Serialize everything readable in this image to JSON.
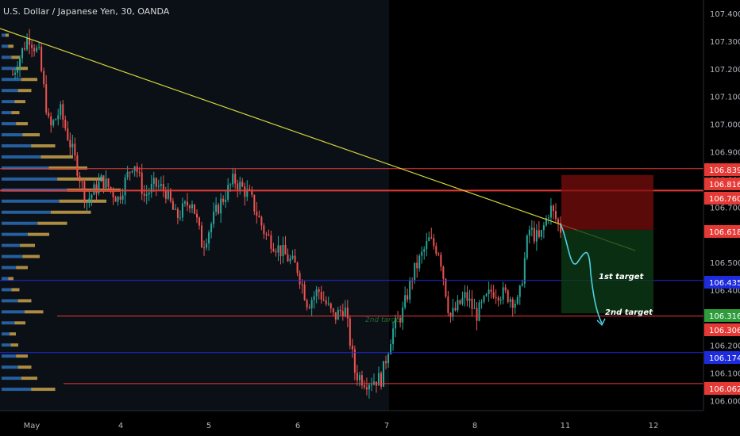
{
  "header": {
    "symbol_title": "U.S. Dollar / Japanese Yen, 30, OANDA"
  },
  "colors": {
    "background": "#000000",
    "session_shade": "#0b1016",
    "up_candle": "#26a69a",
    "down_candle": "#ef5350",
    "trendline": "#d4d43c",
    "red_level": "#e53935",
    "blue_level": "#1e2bdc",
    "projection": "#4dd0e1",
    "volume_blue": "#2a6db5",
    "volume_orange": "#c9a24a",
    "axis_text": "#b2b5be"
  },
  "chart_data": {
    "type": "candlestick",
    "title": "U.S. Dollar / Japanese Yen, 30, OANDA",
    "ylim": [
      105.97,
      107.42
    ],
    "x_day_ticks": [
      "May",
      "4",
      "5",
      "6",
      "7",
      "8",
      "11",
      "12"
    ],
    "y_ticks": [
      106.0,
      106.1,
      106.2,
      106.3,
      106.4,
      106.5,
      106.6,
      106.7,
      106.8,
      106.9,
      107.0,
      107.1,
      107.2,
      107.3,
      107.4
    ],
    "y_tick_labels": [
      "106.000",
      "106.100",
      "106.200",
      "106.300",
      "106.400",
      "106.500",
      "106.600",
      "106.700",
      "106.800",
      "106.900",
      "107.000",
      "107.100",
      "107.200",
      "107.300",
      "107.400"
    ],
    "price_path": [
      [
        0,
        107.18
      ],
      [
        3,
        107.32
      ],
      [
        5,
        107.25
      ],
      [
        7,
        106.98
      ],
      [
        9,
        107.05
      ],
      [
        12,
        106.86
      ],
      [
        14,
        106.72
      ],
      [
        17,
        106.8
      ],
      [
        20,
        106.73
      ],
      [
        23,
        106.87
      ],
      [
        25,
        106.74
      ],
      [
        27,
        106.78
      ],
      [
        29,
        106.76
      ],
      [
        31,
        106.66
      ],
      [
        34,
        106.73
      ],
      [
        36,
        106.56
      ],
      [
        39,
        106.7
      ],
      [
        42,
        106.8
      ],
      [
        45,
        106.74
      ],
      [
        48,
        106.6
      ],
      [
        51,
        106.54
      ],
      [
        54,
        106.48
      ],
      [
        56,
        106.35
      ],
      [
        58,
        106.4
      ],
      [
        61,
        106.3
      ],
      [
        63,
        106.34
      ],
      [
        65,
        106.1
      ],
      [
        67,
        106.07
      ],
      [
        70,
        106.08
      ],
      [
        72,
        106.25
      ],
      [
        74,
        106.32
      ],
      [
        76,
        106.46
      ],
      [
        79,
        106.58
      ],
      [
        81,
        106.54
      ],
      [
        83,
        106.3
      ],
      [
        86,
        106.38
      ],
      [
        88,
        106.31
      ],
      [
        91,
        106.4
      ],
      [
        94,
        106.38
      ],
      [
        96,
        106.35
      ],
      [
        98,
        106.62
      ],
      [
        100,
        106.58
      ],
      [
        102,
        106.7
      ],
      [
        104,
        106.62
      ]
    ],
    "volume_profile": [
      [
        106.04,
        0.45
      ],
      [
        106.08,
        0.3
      ],
      [
        106.12,
        0.25
      ],
      [
        106.16,
        0.22
      ],
      [
        106.2,
        0.14
      ],
      [
        106.24,
        0.12
      ],
      [
        106.28,
        0.2
      ],
      [
        106.32,
        0.35
      ],
      [
        106.36,
        0.25
      ],
      [
        106.4,
        0.15
      ],
      [
        106.44,
        0.1
      ],
      [
        106.48,
        0.22
      ],
      [
        106.52,
        0.32
      ],
      [
        106.56,
        0.28
      ],
      [
        106.6,
        0.4
      ],
      [
        106.64,
        0.55
      ],
      [
        106.68,
        0.75
      ],
      [
        106.72,
        0.88
      ],
      [
        106.76,
        1.0
      ],
      [
        106.8,
        0.85
      ],
      [
        106.84,
        0.72
      ],
      [
        106.88,
        0.6
      ],
      [
        106.92,
        0.45
      ],
      [
        106.96,
        0.32
      ],
      [
        107.0,
        0.22
      ],
      [
        107.04,
        0.15
      ],
      [
        107.08,
        0.2
      ],
      [
        107.12,
        0.25
      ],
      [
        107.16,
        0.3
      ],
      [
        107.2,
        0.22
      ],
      [
        107.24,
        0.15
      ],
      [
        107.28,
        0.1
      ],
      [
        107.32,
        0.06
      ]
    ],
    "horizontal_levels": [
      {
        "price": 106.839,
        "label": "106.839",
        "color": "red",
        "width": 1
      },
      {
        "price": 106.76,
        "label": "106.760",
        "color": "red",
        "width": 2
      },
      {
        "price": 106.435,
        "label": "106.435",
        "color": "blue",
        "width": 1
      },
      {
        "price": 106.306,
        "label": "106.306",
        "color": "red",
        "width": 1
      },
      {
        "price": 106.174,
        "label": "106.174",
        "color": "blue",
        "width": 1
      },
      {
        "price": 106.062,
        "label": "106.062",
        "color": "red",
        "width": 1
      }
    ],
    "price_tags": [
      {
        "label": "106.839",
        "bg": "#e53935"
      },
      {
        "label": "106.816",
        "bg": "#e53935"
      },
      {
        "label": "106.760",
        "bg": "#e53935"
      },
      {
        "label": "106.618",
        "bg": "#e53935"
      },
      {
        "label": "106.435",
        "bg": "#1e2bdc"
      },
      {
        "label": "106.316",
        "bg": "#2e9c3a"
      },
      {
        "label": "106.306",
        "bg": "#e53935"
      },
      {
        "label": "106.174",
        "bg": "#1e2bdc"
      },
      {
        "label": "106.062",
        "bg": "#e53935"
      }
    ],
    "short_position": {
      "stop": 106.816,
      "entry": 106.618,
      "target": 106.316
    },
    "annotations": [
      {
        "text": "1st target"
      },
      {
        "text": "2nd target"
      },
      {
        "text": "2nd target"
      }
    ]
  }
}
